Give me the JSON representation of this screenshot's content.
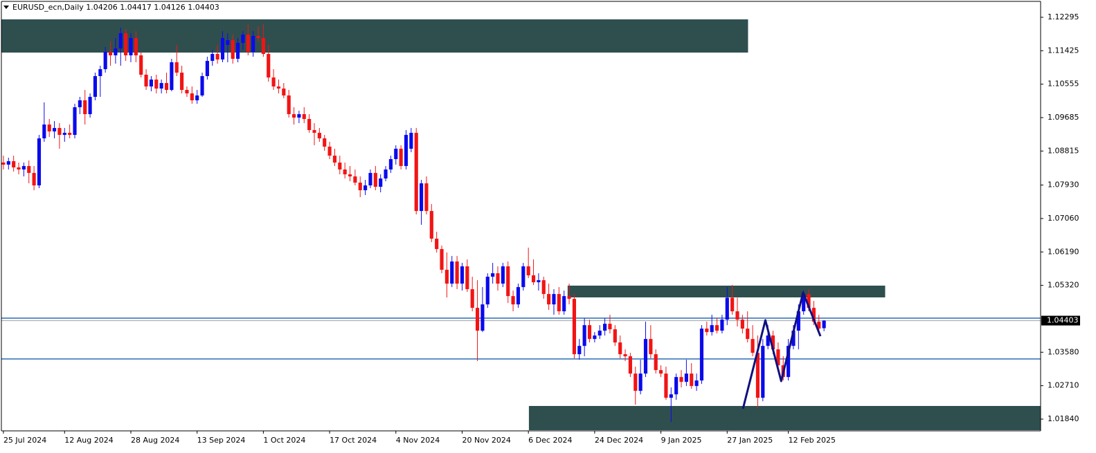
{
  "chart_data": {
    "type": "candlestick",
    "title": "EURUSD_ecn,Daily  1.04206 1.04417 1.04126 1.04403",
    "up_color": "#0a0aec",
    "down_color": "#f21414",
    "zone_color": "#2f4f4f",
    "level_color": "#2a6db5",
    "pattern_color": "#101080",
    "last_price": 1.04403,
    "ylim": [
      1.01534,
      1.12709
    ],
    "xlim": [
      -0.4,
      203.5
    ],
    "yticks": [
      1.12295,
      1.11425,
      1.10555,
      1.09685,
      1.08815,
      {
        "value": 1.0793,
        "label": "1.07930"
      },
      {
        "value": 1.0706,
        "label": "1.07060"
      },
      {
        "value": 1.0619,
        "label": "1.06190"
      },
      {
        "value": 1.0532,
        "label": "1.05320"
      },
      {
        "value": 1.0358,
        "label": "1.03580"
      },
      {
        "value": 1.0271,
        "label": "1.02710"
      },
      {
        "value": 1.0184,
        "label": "1.01840"
      }
    ],
    "categories": [
      "25 Jul 2024",
      null,
      null,
      null,
      null,
      null,
      null,
      null,
      null,
      null,
      null,
      null,
      "12 Aug 2024",
      null,
      null,
      null,
      null,
      null,
      null,
      null,
      null,
      null,
      null,
      null,
      null,
      "28 Aug 2024",
      null,
      null,
      null,
      null,
      null,
      null,
      null,
      null,
      null,
      null,
      null,
      null,
      "13 Sep 2024",
      null,
      null,
      null,
      null,
      null,
      null,
      null,
      null,
      null,
      null,
      null,
      null,
      "1 Oct 2024",
      null,
      null,
      null,
      null,
      null,
      null,
      null,
      null,
      null,
      null,
      null,
      null,
      "17 Oct 2024",
      null,
      null,
      null,
      null,
      null,
      null,
      null,
      null,
      null,
      null,
      null,
      null,
      "4 Nov 2024",
      null,
      null,
      null,
      null,
      null,
      null,
      null,
      null,
      null,
      null,
      null,
      null,
      "20 Nov 2024",
      null,
      null,
      null,
      null,
      null,
      null,
      null,
      null,
      null,
      null,
      null,
      null,
      "6 Dec 2024",
      null,
      null,
      null,
      null,
      null,
      null,
      null,
      null,
      null,
      null,
      null,
      null,
      "24 Dec 2024",
      null,
      null,
      null,
      null,
      null,
      null,
      null,
      null,
      null,
      null,
      null,
      null,
      "9 Jan 2025",
      null,
      null,
      null,
      null,
      null,
      null,
      null,
      null,
      null,
      null,
      null,
      null,
      "27 Jan 2025",
      null,
      null,
      null,
      null,
      null,
      null,
      null,
      null,
      null,
      null,
      null,
      "12 Feb 2025",
      null,
      null,
      null,
      null,
      null,
      null,
      null
    ],
    "candles": [
      [
        1.08515,
        1.08695,
        1.08335,
        1.08461
      ],
      [
        1.08461,
        1.08641,
        1.08335,
        1.08551
      ],
      [
        1.08551,
        1.08695,
        1.08281,
        1.08389
      ],
      [
        1.08389,
        1.08515,
        1.08209,
        1.08335
      ],
      [
        1.08335,
        1.08515,
        1.08155,
        1.08425
      ],
      [
        1.08425,
        1.08569,
        1.07975,
        1.08245
      ],
      [
        1.08245,
        1.08425,
        1.07795,
        1.07921
      ],
      [
        1.07921,
        1.09235,
        1.07849,
        1.09145
      ],
      [
        1.09145,
        1.10081,
        1.09055,
        1.09505
      ],
      [
        1.09505,
        1.09649,
        1.09181,
        1.09325
      ],
      [
        1.09325,
        1.09595,
        1.09145,
        1.09415
      ],
      [
        1.09415,
        1.09541,
        1.08875,
        1.09235
      ],
      [
        1.09235,
        1.09415,
        1.09055,
        1.09289
      ],
      [
        1.09289,
        1.09505,
        1.09145,
        1.09235
      ],
      [
        1.09235,
        1.10045,
        1.09145,
        1.09955
      ],
      [
        1.09955,
        1.10225,
        1.09775,
        1.10135
      ],
      [
        1.10135,
        1.10405,
        1.09505,
        1.09775
      ],
      [
        1.09775,
        1.10315,
        1.09685,
        1.10225
      ],
      [
        1.10225,
        1.10855,
        1.10135,
        1.10765
      ],
      [
        1.10765,
        1.11035,
        1.10225,
        1.10945
      ],
      [
        1.10945,
        1.11521,
        1.10855,
        1.11395
      ],
      [
        1.11395,
        1.11665,
        1.11035,
        1.11305
      ],
      [
        1.11305,
        1.11755,
        1.11089,
        1.11485
      ],
      [
        1.11485,
        1.12025,
        1.11035,
        1.11881
      ],
      [
        1.11881,
        1.11989,
        1.11161,
        1.11305
      ],
      [
        1.11305,
        1.11881,
        1.11125,
        1.11755
      ],
      [
        1.11755,
        1.11935,
        1.11125,
        1.11305
      ],
      [
        1.11305,
        1.11395,
        1.10729,
        1.10801
      ],
      [
        1.10801,
        1.10945,
        1.10405,
        1.10495
      ],
      [
        1.10495,
        1.10765,
        1.10369,
        1.10675
      ],
      [
        1.10675,
        1.10801,
        1.10315,
        1.10441
      ],
      [
        1.10441,
        1.10675,
        1.10315,
        1.10585
      ],
      [
        1.10585,
        1.10855,
        1.10315,
        1.10405
      ],
      [
        1.10405,
        1.11215,
        1.10369,
        1.11125
      ],
      [
        1.11125,
        1.11575,
        1.10765,
        1.10855
      ],
      [
        1.10855,
        1.11035,
        1.10315,
        1.10405
      ],
      [
        1.10405,
        1.10495,
        1.10225,
        1.10315
      ],
      [
        1.10315,
        1.10495,
        1.10045,
        1.10135
      ],
      [
        1.10135,
        1.10405,
        1.10045,
        1.10261
      ],
      [
        1.10261,
        1.10855,
        1.10225,
        1.10765
      ],
      [
        1.10765,
        1.11269,
        1.10675,
        1.11161
      ],
      [
        1.11161,
        1.11449,
        1.11035,
        1.11341
      ],
      [
        1.11341,
        1.11575,
        1.11089,
        1.11197
      ],
      [
        1.11197,
        1.11935,
        1.11125,
        1.11755
      ],
      [
        1.11575,
        1.11881,
        1.11125,
        1.11701
      ],
      [
        1.11701,
        1.11845,
        1.11089,
        1.11215
      ],
      [
        1.11215,
        1.11755,
        1.11125,
        1.11629
      ],
      [
        1.11629,
        1.11935,
        1.11449,
        1.11845
      ],
      [
        1.11845,
        1.12115,
        1.11305,
        1.11395
      ],
      [
        1.11395,
        1.11935,
        1.11269,
        1.11809
      ],
      [
        1.11809,
        1.12061,
        1.11665,
        1.11755
      ],
      [
        1.11755,
        1.12115,
        1.11269,
        1.11341
      ],
      [
        1.11341,
        1.11575,
        1.10621,
        1.10729
      ],
      [
        1.10729,
        1.10945,
        1.10405,
        1.10495
      ],
      [
        1.10495,
        1.10675,
        1.10315,
        1.10441
      ],
      [
        1.10441,
        1.10585,
        1.10189,
        1.10261
      ],
      [
        1.10261,
        1.10405,
        1.09685,
        1.09775
      ],
      [
        1.09775,
        1.09955,
        1.09505,
        1.09685
      ],
      [
        1.09685,
        1.09865,
        1.09541,
        1.09775
      ],
      [
        1.09775,
        1.09955,
        1.09541,
        1.09649
      ],
      [
        1.09649,
        1.09775,
        1.09289,
        1.09361
      ],
      [
        1.09361,
        1.09541,
        1.08965,
        1.09289
      ],
      [
        1.09289,
        1.09415,
        1.09055,
        1.09145
      ],
      [
        1.09145,
        1.09235,
        1.08821,
        1.08929
      ],
      [
        1.08929,
        1.09055,
        1.08605,
        1.08695
      ],
      [
        1.08695,
        1.08875,
        1.08425,
        1.08515
      ],
      [
        1.08515,
        1.08695,
        1.08209,
        1.08335
      ],
      [
        1.08335,
        1.08515,
        1.08101,
        1.08209
      ],
      [
        1.08209,
        1.08425,
        1.08029,
        1.08155
      ],
      [
        1.08155,
        1.08335,
        1.07921,
        1.07993
      ],
      [
        1.07993,
        1.08155,
        1.07615,
        1.07795
      ],
      [
        1.07795,
        1.08065,
        1.07669,
        1.07921
      ],
      [
        1.07921,
        1.08335,
        1.07849,
        1.08245
      ],
      [
        1.08245,
        1.08425,
        1.07795,
        1.07885
      ],
      [
        1.07885,
        1.08209,
        1.07741,
        1.08101
      ],
      [
        1.08101,
        1.08425,
        1.08029,
        1.08335
      ],
      [
        1.08335,
        1.08695,
        1.08245,
        1.08605
      ],
      [
        1.08605,
        1.08965,
        1.08461,
        1.08875
      ],
      [
        1.08875,
        1.08965,
        1.08335,
        1.08425
      ],
      [
        1.08425,
        1.09361,
        1.08335,
        1.09235
      ],
      [
        1.08875,
        1.09415,
        1.08785,
        1.09289
      ],
      [
        1.09289,
        1.09415,
        1.07165,
        1.07255
      ],
      [
        1.07255,
        1.08065,
        1.06895,
        1.07975
      ],
      [
        1.07975,
        1.08155,
        1.07165,
        1.07255
      ],
      [
        1.07255,
        1.07435,
        1.06445,
        1.06535
      ],
      [
        1.06535,
        1.06715,
        1.06175,
        1.06265
      ],
      [
        1.06265,
        1.06355,
        1.05635,
        1.05725
      ],
      [
        1.05725,
        1.06175,
        1.05005,
        1.05365
      ],
      [
        1.05365,
        1.06085,
        1.05275,
        1.05941
      ],
      [
        1.05941,
        1.06085,
        1.05221,
        1.05365
      ],
      [
        1.05365,
        1.05905,
        1.05185,
        1.05815
      ],
      [
        1.05815,
        1.05995,
        1.05149,
        1.05221
      ],
      [
        1.05221,
        1.05545,
        1.04645,
        1.04735
      ],
      [
        1.04735,
        1.05455,
        1.03349,
        1.04141
      ],
      [
        1.04141,
        1.05275,
        1.04105,
        1.04825
      ],
      [
        1.04825,
        1.05635,
        1.04735,
        1.05545
      ],
      [
        1.05545,
        1.05905,
        1.05365,
        1.05635
      ],
      [
        1.05635,
        1.05815,
        1.05185,
        1.05365
      ],
      [
        1.05365,
        1.05905,
        1.05275,
        1.05815
      ],
      [
        1.05815,
        1.05941,
        1.04861,
        1.05041
      ],
      [
        1.05041,
        1.05185,
        1.04645,
        1.04825
      ],
      [
        1.04825,
        1.05365,
        1.04735,
        1.05275
      ],
      [
        1.05275,
        1.05905,
        1.05185,
        1.05815
      ],
      [
        1.05815,
        1.06301,
        1.05509,
        1.05581
      ],
      [
        1.05581,
        1.05995,
        1.05329,
        1.05401
      ],
      [
        1.05401,
        1.05635,
        1.05185,
        1.05455
      ],
      [
        1.05455,
        1.05545,
        1.04969,
        1.05095
      ],
      [
        1.05095,
        1.05365,
        1.04681,
        1.04825
      ],
      [
        1.04825,
        1.05221,
        1.04555,
        1.05095
      ],
      [
        1.05095,
        1.05275,
        1.04555,
        1.04645
      ],
      [
        1.04645,
        1.05185,
        1.04555,
        1.05041
      ],
      [
        1.05041,
        1.05365,
        1.04825,
        1.04969
      ],
      [
        1.04969,
        1.05095,
        1.03421,
        1.03529
      ],
      [
        1.03529,
        1.03925,
        1.03385,
        1.03745
      ],
      [
        1.03745,
        1.04465,
        1.03475,
        1.04285
      ],
      [
        1.04285,
        1.04429,
        1.03835,
        1.03925
      ],
      [
        1.03925,
        1.04105,
        1.03835,
        1.04015
      ],
      [
        1.04015,
        1.04285,
        1.03925,
        1.04141
      ],
      [
        1.04141,
        1.04465,
        1.04015,
        1.04321
      ],
      [
        1.04321,
        1.04555,
        1.04069,
        1.04177
      ],
      [
        1.04177,
        1.04285,
        1.03745,
        1.03835
      ],
      [
        1.03835,
        1.04015,
        1.03421,
        1.03529
      ],
      [
        1.03529,
        1.03655,
        1.03349,
        1.03475
      ],
      [
        1.03475,
        1.03565,
        1.02935,
        1.03025
      ],
      [
        1.03025,
        1.03205,
        1.02215,
        1.02575
      ],
      [
        1.02575,
        1.03385,
        1.02485,
        1.03025
      ],
      [
        1.03025,
        1.04375,
        1.02935,
        1.03925
      ],
      [
        1.03925,
        1.04285,
        1.03421,
        1.03529
      ],
      [
        1.03529,
        1.03655,
        1.03025,
        1.03115
      ],
      [
        1.03115,
        1.03241,
        1.02935,
        1.03025
      ],
      [
        1.03025,
        1.03205,
        1.02341,
        1.02395
      ],
      [
        1.02395,
        1.02665,
        1.01765,
        1.02485
      ],
      [
        1.02485,
        1.03025,
        1.02341,
        1.02935
      ],
      [
        1.02935,
        1.03115,
        1.02665,
        1.02809
      ],
      [
        1.02809,
        1.03385,
        1.02701,
        1.03025
      ],
      [
        1.03025,
        1.03295,
        1.02629,
        1.02701
      ],
      [
        1.02701,
        1.03025,
        1.02575,
        1.02845
      ],
      [
        1.02845,
        1.04285,
        1.02755,
        1.04195
      ],
      [
        1.04195,
        1.04375,
        1.04015,
        1.04105
      ],
      [
        1.04105,
        1.04555,
        1.04015,
        1.04285
      ],
      [
        1.04285,
        1.04465,
        1.04069,
        1.04141
      ],
      [
        1.04141,
        1.04555,
        1.04069,
        1.04429
      ],
      [
        1.04429,
        1.05275,
        1.04285,
        1.04999
      ],
      [
        1.04999,
        1.05329,
        1.04555,
        1.04645
      ],
      [
        1.04645,
        1.04999,
        1.04249,
        1.04429
      ],
      [
        1.04429,
        1.04555,
        1.04069,
        1.04195
      ],
      [
        1.04195,
        1.04645,
        1.03835,
        1.03925
      ],
      [
        1.03925,
        1.04285,
        1.03475,
        1.03565
      ],
      [
        1.03565,
        1.04015,
        1.02125,
        1.02395
      ],
      [
        1.02395,
        1.03925,
        1.02305,
        1.03745
      ],
      [
        1.03745,
        1.04285,
        1.03655,
        1.04015
      ],
      [
        1.04015,
        1.04141,
        1.03529,
        1.03655
      ],
      [
        1.03655,
        1.03835,
        1.03115,
        1.03241
      ],
      [
        1.03241,
        1.03475,
        1.02845,
        1.02935
      ],
      [
        1.02935,
        1.03925,
        1.02845,
        1.03745
      ],
      [
        1.03745,
        1.04285,
        1.03655,
        1.04141
      ],
      [
        1.04141,
        1.04825,
        1.03655,
        1.04645
      ],
      [
        1.04645,
        1.05185,
        1.04555,
        1.05095
      ],
      [
        1.05095,
        1.05221,
        1.04645,
        1.04735
      ],
      [
        1.04735,
        1.04915,
        1.04285,
        1.04375
      ],
      [
        1.04375,
        1.04555,
        1.04141,
        1.04195
      ],
      [
        1.04206,
        1.04417,
        1.04126,
        1.04403
      ]
    ],
    "zones": [
      {
        "x": [
          -0.4,
          146.1
        ],
        "y": [
          1.11377,
          1.12241
        ]
      },
      {
        "x": [
          110.7,
          173
        ],
        "y": [
          1.05007,
          1.05313
        ]
      },
      {
        "x": [
          103.1,
          203.5
        ],
        "y": [
          1.01552,
          1.02182
        ]
      }
    ],
    "levels": [
      1.04467,
      1.03405
    ],
    "pattern": {
      "x": [
        145.1,
        149.5,
        152.6,
        156.9,
        160.3
      ],
      "y": [
        1.0211,
        1.04413,
        1.02829,
        1.05133,
        1.03999
      ]
    }
  }
}
